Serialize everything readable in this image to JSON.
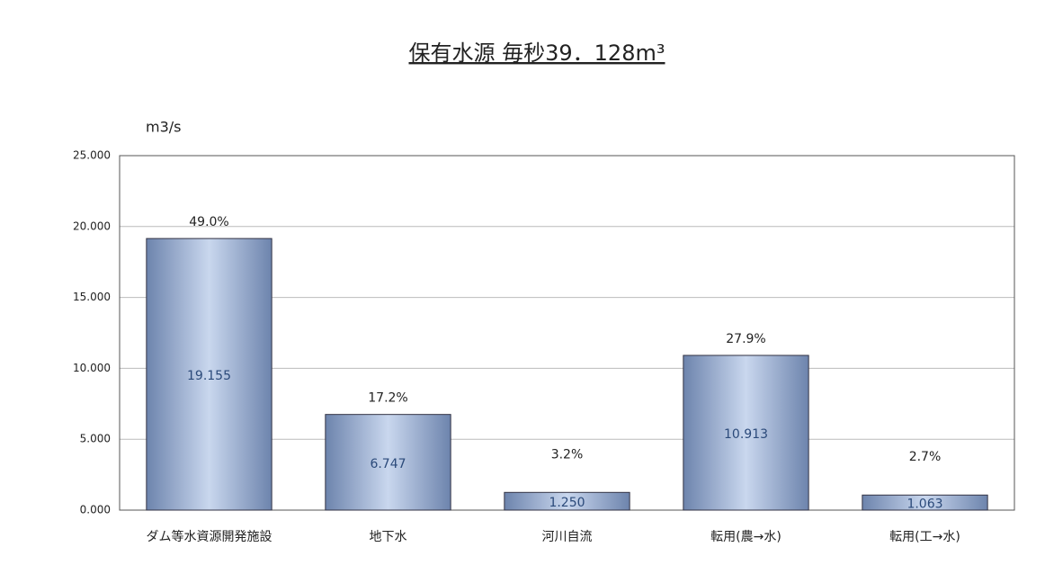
{
  "chart_data": {
    "type": "bar",
    "title": "保有水源 毎秒39．128m³",
    "y_label": "m3/s",
    "categories": [
      "ダム等水資源開発施設",
      "地下水",
      "河川自流",
      "転用(農→水)",
      "転用(工→水)"
    ],
    "values": [
      19.155,
      6.747,
      1.25,
      10.913,
      1.063
    ],
    "value_labels": [
      "19.155",
      "6.747",
      "1.250",
      "10.913",
      "1.063"
    ],
    "percent_labels": [
      "49.0%",
      "17.2%",
      "3.2%",
      "27.9%",
      "2.7%"
    ],
    "color": "#9db3d6",
    "ylim": [
      0,
      25
    ],
    "yticks": [
      {
        "value": 0,
        "label": "0.000"
      },
      {
        "value": 5,
        "label": "5.000"
      },
      {
        "value": 10,
        "label": "10.000"
      },
      {
        "value": 15,
        "label": "15.000"
      },
      {
        "value": 20,
        "label": "20.000"
      },
      {
        "value": 25,
        "label": "25.000"
      }
    ],
    "grid": true
  }
}
